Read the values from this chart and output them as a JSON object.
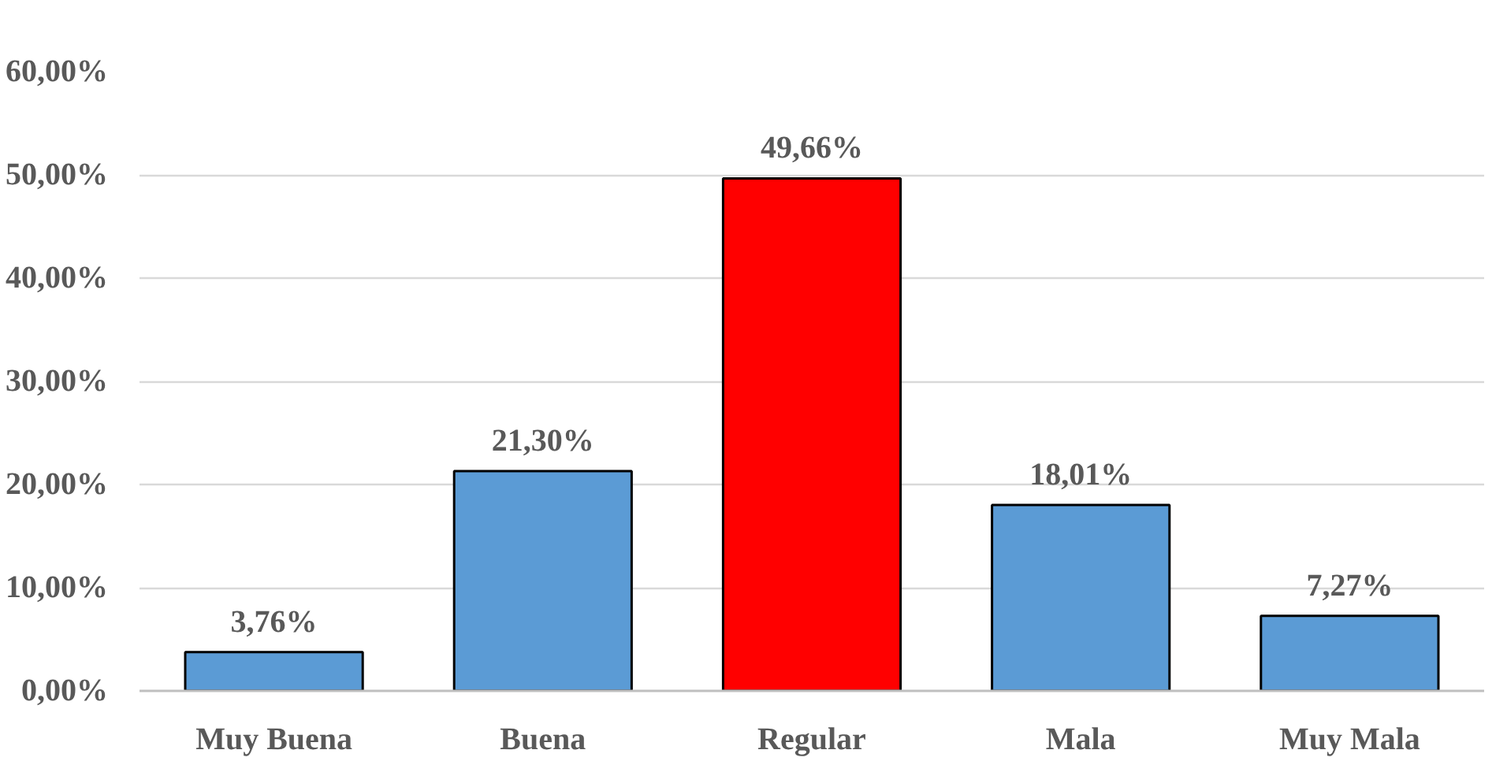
{
  "chart_data": {
    "type": "bar",
    "categories": [
      "Muy Buena",
      "Buena",
      "Regular",
      "Mala",
      "Muy Mala"
    ],
    "values": [
      3.76,
      21.3,
      49.66,
      18.01,
      7.27
    ],
    "colors": [
      "#5b9bd5",
      "#5b9bd5",
      "#ff0000",
      "#5b9bd5",
      "#5b9bd5"
    ],
    "value_labels": [
      "3,76%",
      "21,30%",
      "49,66%",
      "18,01%",
      "7,27%"
    ],
    "ylim": [
      0,
      60
    ],
    "yticks": [
      {
        "value": 0,
        "label": "0,00%"
      },
      {
        "value": 10,
        "label": "10,00%"
      },
      {
        "value": 20,
        "label": "20,00%"
      },
      {
        "value": 30,
        "label": "30,00%"
      },
      {
        "value": 40,
        "label": "40,00%"
      },
      {
        "value": 50,
        "label": "50,00%"
      },
      {
        "value": 60,
        "label": "60,00%"
      }
    ],
    "grid": "y"
  }
}
